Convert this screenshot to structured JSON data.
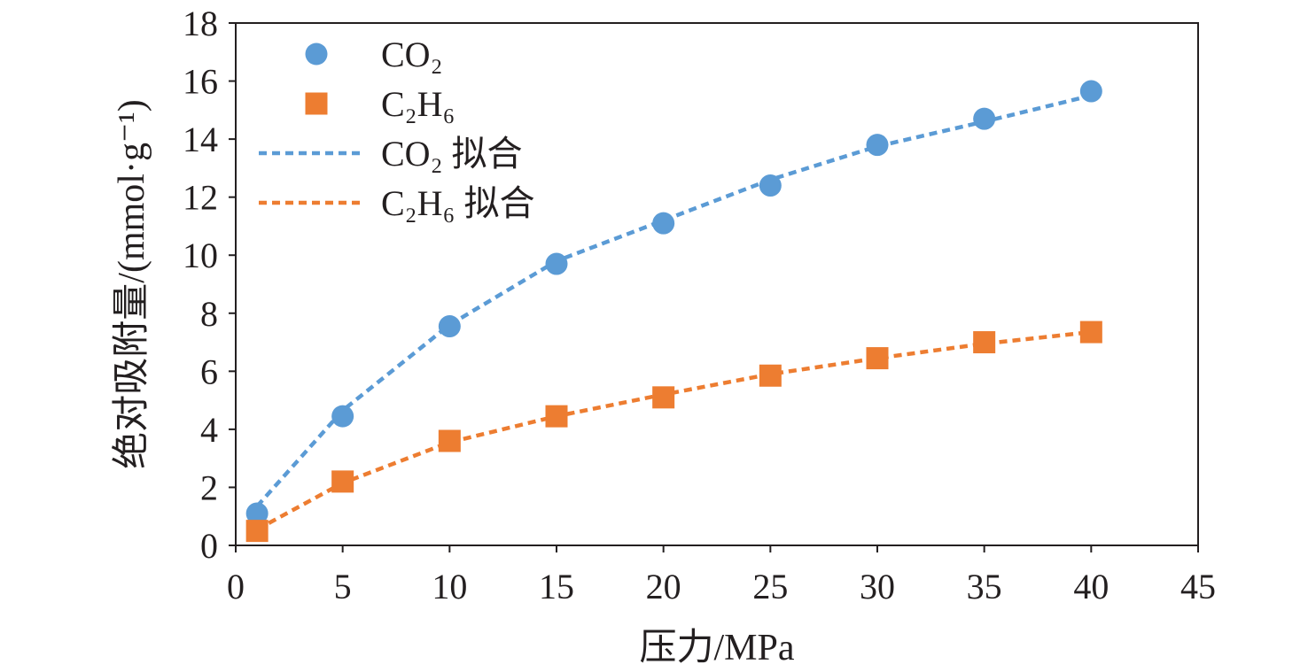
{
  "chart_data": {
    "type": "scatter",
    "title": "",
    "xlabel": "压力/MPa",
    "ylabel": "绝对吸附量/(mmol·g⁻¹)",
    "xlim": [
      0,
      45
    ],
    "ylim": [
      0,
      18
    ],
    "xticks": [
      0,
      5,
      10,
      15,
      20,
      25,
      30,
      35,
      40,
      45
    ],
    "yticks": [
      0,
      2,
      4,
      6,
      8,
      10,
      12,
      14,
      16,
      18
    ],
    "grid": false,
    "legend_position": "top-left",
    "x": [
      1,
      5,
      10,
      15,
      20,
      25,
      30,
      35,
      40
    ],
    "series": [
      {
        "name": "CO₂",
        "kind": "marker",
        "marker": "circle",
        "color": "#5b9bd5",
        "values": [
          1.1,
          4.45,
          7.55,
          9.7,
          11.1,
          12.4,
          13.8,
          14.7,
          15.65
        ]
      },
      {
        "name": "C₂H₆",
        "kind": "marker",
        "marker": "square",
        "color": "#ed7d31",
        "values": [
          0.5,
          2.2,
          3.6,
          4.45,
          5.1,
          5.85,
          6.45,
          7.0,
          7.35
        ]
      },
      {
        "name": "CO₂ 拟合",
        "kind": "dashed-line",
        "color": "#5b9bd5",
        "values": [
          1.35,
          4.65,
          7.6,
          9.8,
          11.2,
          12.6,
          13.75,
          14.6,
          15.5
        ]
      },
      {
        "name": "C₂H₆ 拟合",
        "kind": "dashed-line",
        "color": "#ed7d31",
        "values": [
          0.55,
          2.15,
          3.55,
          4.45,
          5.2,
          5.9,
          6.45,
          6.95,
          7.35
        ]
      }
    ]
  }
}
